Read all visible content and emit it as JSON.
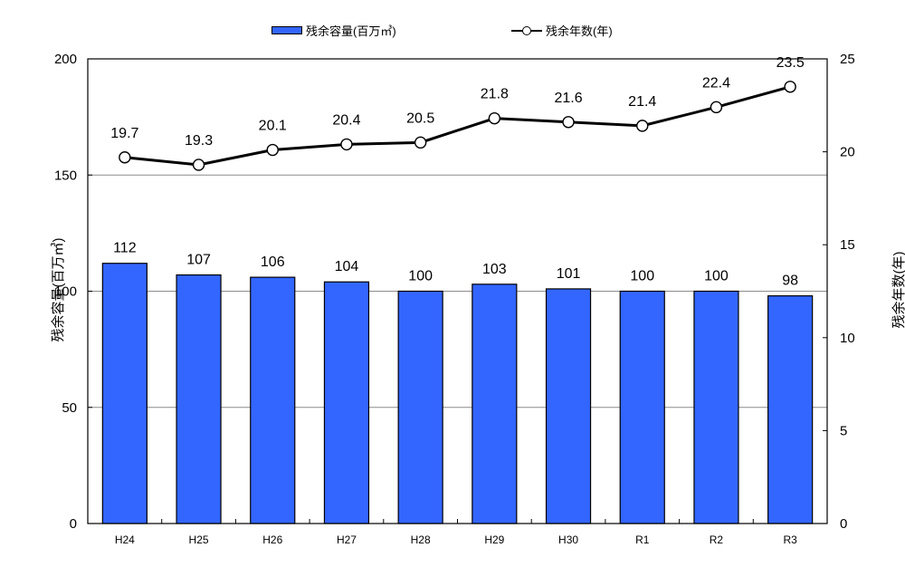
{
  "chart_data": {
    "type": "bar+line",
    "title": "",
    "categories": [
      "H24",
      "H25",
      "H26",
      "H27",
      "H28",
      "H29",
      "H30",
      "R1",
      "R2",
      "R3"
    ],
    "series": [
      {
        "name": "残余容量(百万㎥)",
        "type": "bar",
        "axis": "left",
        "color": "#3366ff",
        "values": [
          112,
          107,
          106,
          104,
          100,
          103,
          101,
          100,
          100,
          98
        ]
      },
      {
        "name": "残余年数(年)",
        "type": "line",
        "axis": "right",
        "color": "#000000",
        "marker": "open-circle",
        "values": [
          19.7,
          19.3,
          20.1,
          20.4,
          20.5,
          21.8,
          21.6,
          21.4,
          22.4,
          23.5
        ]
      }
    ],
    "ylabel": "残余容量(百万㎥)",
    "y2label": "残余年数(年)",
    "ylim": [
      0,
      200
    ],
    "y2lim": [
      0,
      25
    ],
    "yticks": [
      0,
      50,
      100,
      150,
      200
    ],
    "y2ticks": [
      0,
      5,
      10,
      15,
      20,
      25
    ],
    "grid": true,
    "legend_position": "top"
  },
  "legend": {
    "bar_label": "残余容量(百万㎥)",
    "line_label": "残余年数(年)"
  },
  "axes": {
    "left_title": "残余容量(百万㎥)",
    "right_title": "残余年数(年)"
  }
}
